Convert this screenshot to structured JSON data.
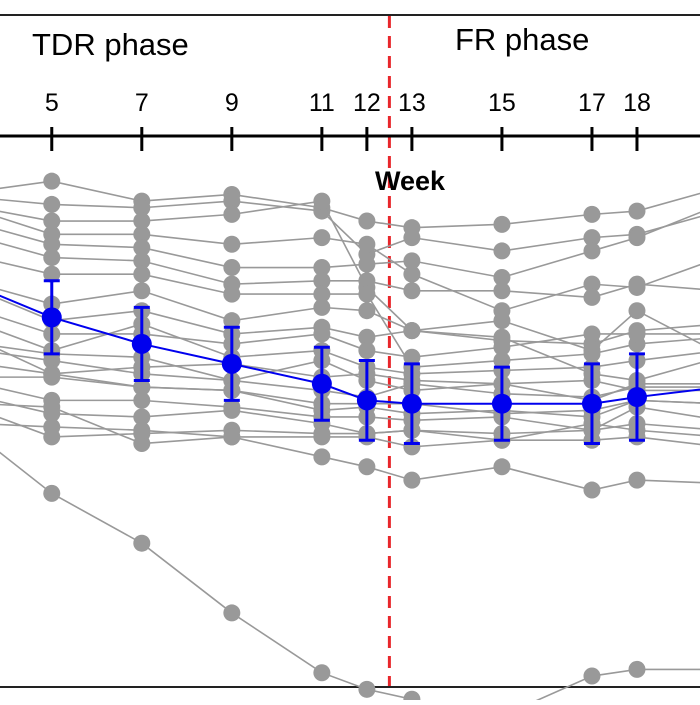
{
  "chart_data": {
    "type": "line",
    "title": "",
    "xlabel": "Week",
    "ylabel": "",
    "x_axis_position": "top",
    "grid": false,
    "phases": [
      {
        "label": "TDR phase",
        "x_start": 0,
        "x_end": 12.5
      },
      {
        "label": "FR phase",
        "x_start": 12.5,
        "x_end": 19.9
      }
    ],
    "phase_boundaries": [
      12.5,
      19.9
    ],
    "phase_boundary_color": "#e8262b",
    "x_tick_labels": [
      {
        "x": 5,
        "label": "5"
      },
      {
        "x": 7,
        "label": "7"
      },
      {
        "x": 9,
        "label": "9"
      },
      {
        "x": 11,
        "label": "11"
      },
      {
        "x": 12,
        "label": "12"
      },
      {
        "x": 13,
        "label": "13"
      },
      {
        "x": 15,
        "label": "15"
      },
      {
        "x": 17,
        "label": "17"
      },
      {
        "x": 18,
        "label": "18"
      }
    ],
    "x_ticks": [
      5,
      7,
      9,
      11,
      12,
      13,
      15,
      17,
      18
    ],
    "xlim": [
      3.85,
      19.4
    ],
    "ylim": [
      -15.5,
      1.0
    ],
    "individual_color": "#999999",
    "mean_color": "#0000ee",
    "x": [
      5,
      7,
      9,
      11,
      12,
      13,
      15,
      17,
      18
    ],
    "individuals": [
      {
        "left": -0.6,
        "values": [
          -0.3,
          -0.9,
          -0.7,
          -1.1,
          -1.5,
          -1.7,
          -1.6,
          -1.3,
          -1.2
        ],
        "right": -0.5
      },
      {
        "left": -0.8,
        "values": [
          -1.0,
          -1.1,
          -0.9,
          -1.2,
          -2.5,
          -2.0,
          -2.4,
          -2.0,
          -1.9
        ],
        "right": -1.2
      },
      {
        "left": -1.1,
        "values": [
          -1.5,
          -1.5,
          -1.3,
          -0.9,
          -3.5,
          -4.8,
          -4.5,
          -5.4,
          -4.2
        ],
        "right": -5.5
      },
      {
        "left": -1.2,
        "values": [
          -1.9,
          -1.9,
          -2.2,
          -2.0,
          -2.2,
          -3.1,
          -4.2,
          -3.4,
          -3.5
        ],
        "right": -2.6
      },
      {
        "left": -1.6,
        "values": [
          -2.2,
          -2.3,
          -2.9,
          -2.9,
          -2.8,
          -2.7,
          -3.2,
          -2.4,
          -2.0
        ],
        "right": -1.0
      },
      {
        "left": -2.0,
        "values": [
          -2.6,
          -2.7,
          -3.4,
          -3.3,
          -3.3,
          -3.6,
          -3.6,
          -3.8,
          -3.4
        ],
        "right": -3.6
      },
      {
        "left": -2.6,
        "values": [
          -3.1,
          -3.1,
          -3.7,
          -3.7,
          -3.7,
          -5.9,
          -5.7,
          -5.5,
          -5.2
        ],
        "right": -5.0
      },
      {
        "left": -3.4,
        "values": [
          -4.0,
          -3.6,
          -4.5,
          -4.1,
          -4.2,
          -4.8,
          -5.0,
          -6.1,
          -6.3
        ],
        "right": -5.6
      },
      {
        "left": -3.6,
        "values": [
          -4.5,
          -4.2,
          -4.9,
          -4.7,
          -5.0,
          -4.8,
          -5.1,
          -5.2,
          -4.8
        ],
        "right": -4.6
      },
      {
        "left": -4.2,
        "values": [
          -4.9,
          -4.9,
          -5.2,
          -4.9,
          -5.4,
          -5.6,
          -5.3,
          -4.9,
          -4.9
        ],
        "right": -4.9
      },
      {
        "left": -4.6,
        "values": [
          -5.4,
          -4.6,
          -5.6,
          -5.4,
          -5.9,
          -6.1,
          -6.0,
          -5.9,
          -5.7
        ],
        "right": -5.4
      },
      {
        "left": -5.2,
        "values": [
          -5.5,
          -5.6,
          -6.3,
          -5.7,
          -6.3,
          -6.6,
          -6.4,
          -6.3,
          -6.6
        ],
        "right": -6.6
      },
      {
        "left": -5.1,
        "values": [
          -6.1,
          -5.9,
          -5.8,
          -6.2,
          -6.1,
          -6.3,
          -6.4,
          -6.9,
          -6.4
        ],
        "right": -6.4
      },
      {
        "left": -5.4,
        "values": [
          -5.7,
          -6.1,
          -6.3,
          -6.6,
          -6.8,
          -6.4,
          -6.7,
          -6.8,
          -6.5
        ],
        "right": -6.5
      },
      {
        "left": -5.8,
        "values": [
          -6.1,
          -6.5,
          -6.6,
          -7.0,
          -7.0,
          -7.0,
          -7.3,
          -7.2,
          -6.9
        ],
        "right": -7.0
      },
      {
        "left": -6.2,
        "values": [
          -6.2,
          -6.5,
          -6.6,
          -7.2,
          -7.1,
          -7.3,
          -7.2,
          -7.4,
          -6.9
        ],
        "right": -7.0
      },
      {
        "left": -6.4,
        "values": [
          -6.9,
          -6.9,
          -7.1,
          -7.4,
          -7.4,
          -7.5,
          -7.4,
          -7.8,
          -7.1
        ],
        "right": -7.5
      },
      {
        "left": -6.8,
        "values": [
          -7.3,
          -7.4,
          -7.2,
          -7.6,
          -7.9,
          -7.8,
          -7.9,
          -7.8,
          -7.6
        ],
        "right": -7.8
      },
      {
        "left": -7.2,
        "values": [
          -8.0,
          -7.9,
          -7.8,
          -7.9,
          -7.9,
          -7.8,
          -8.1,
          -7.6,
          -7.8
        ],
        "right": -8.0
      },
      {
        "left": -7.0,
        "values": [
          -7.1,
          -8.2,
          -8.0,
          -8.0,
          -8.0,
          -8.3,
          -8.1,
          -8.1,
          -8.0
        ],
        "right": -8.3
      },
      {
        "left": -7.6,
        "values": [
          -7.7,
          -7.8,
          -8.0,
          -8.6,
          -8.9,
          -9.3,
          -8.9,
          -9.6,
          -9.3
        ],
        "right": -9.4
      },
      {
        "left": -8.0,
        "values": [
          -9.7,
          -11.2,
          -13.3,
          -15.1,
          -15.6,
          -15.9,
          -16.4,
          -15.2,
          -15.0
        ],
        "right": -15.0
      }
    ],
    "mean_series": {
      "left": -3.5,
      "values": [
        -4.4,
        -5.2,
        -5.8,
        -6.4,
        -6.9,
        -7.0,
        -7.0,
        -7.0,
        -6.8
      ],
      "errors": [
        1.1,
        1.1,
        1.1,
        1.1,
        1.2,
        1.2,
        1.1,
        1.2,
        1.3
      ],
      "right": -6.5
    }
  }
}
